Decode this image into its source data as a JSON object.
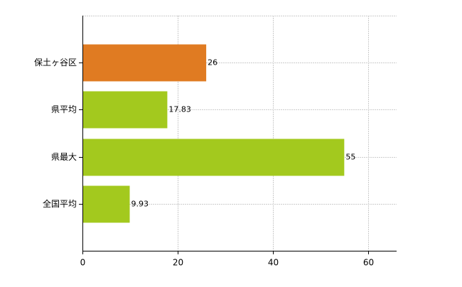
{
  "chart_data": {
    "type": "bar",
    "orientation": "horizontal",
    "categories": [
      "保土ヶ谷区",
      "県平均",
      "県最大",
      "全国平均"
    ],
    "values": [
      26,
      17.83,
      55,
      9.93
    ],
    "colors": [
      "#e07b22",
      "#a3c91e",
      "#a3c91e",
      "#a3c91e"
    ],
    "xlim": [
      0,
      66
    ],
    "xticks": [
      0,
      20,
      40,
      60
    ],
    "grid": true
  }
}
